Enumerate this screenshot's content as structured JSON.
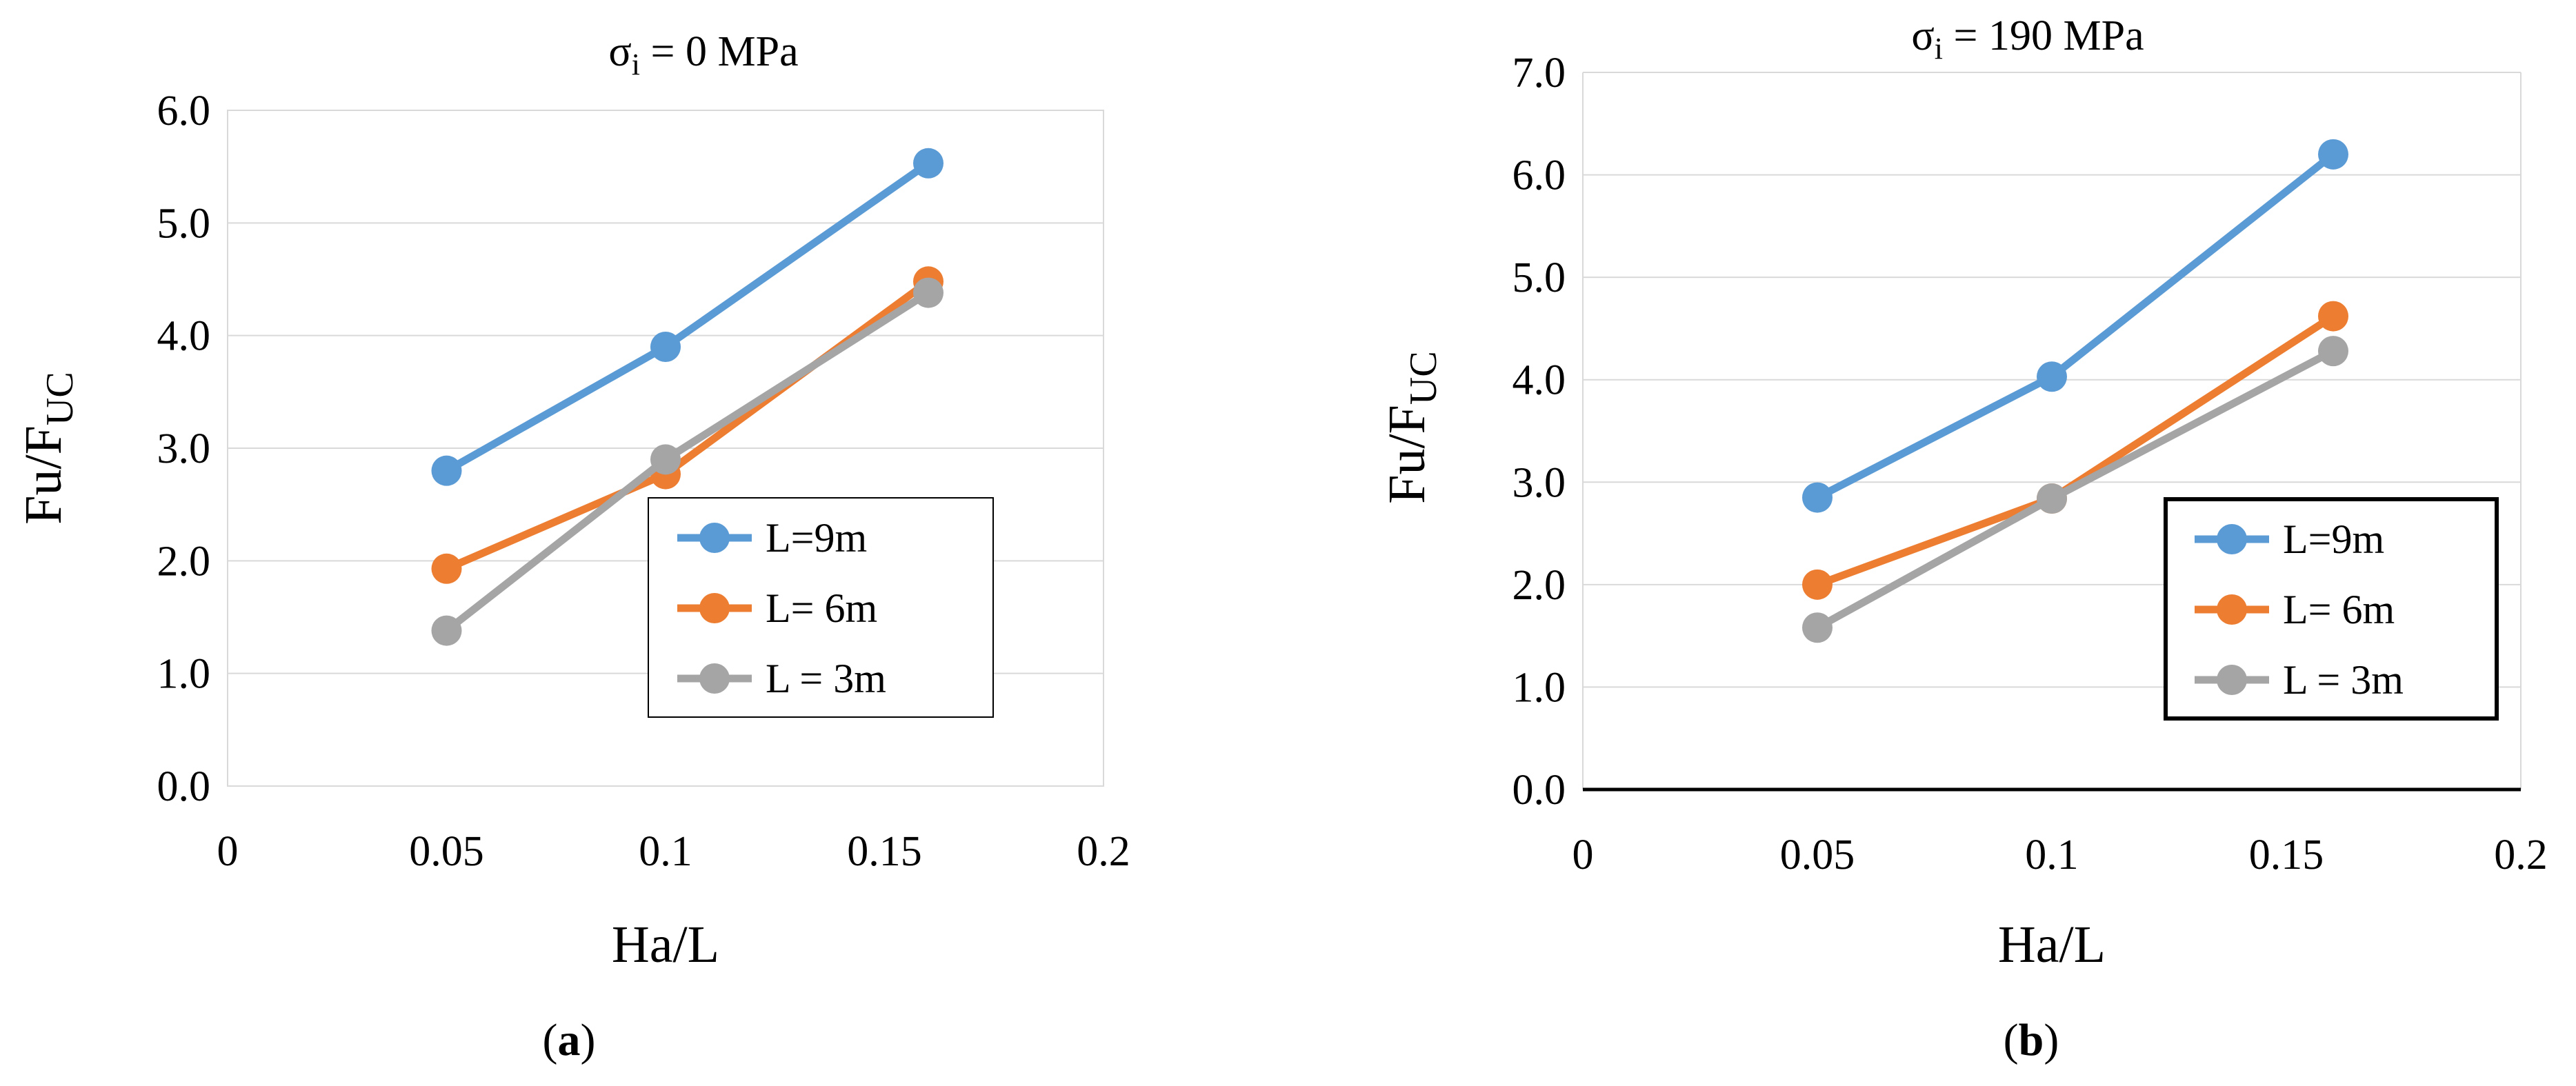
{
  "chart_data": [
    {
      "type": "line",
      "title": {
        "base": "σ",
        "sub": "i",
        "rest": " = 0 MPa"
      },
      "xlabel": "Ha/L",
      "ylabel": {
        "base": "Fu/F",
        "sub": "UC"
      },
      "xlim": [
        0,
        0.2
      ],
      "ylim": [
        0,
        6
      ],
      "xticks": [
        "0",
        "0.05",
        "0.1",
        "0.15",
        "0.2"
      ],
      "yticks": [
        "0.0",
        "1.0",
        "2.0",
        "3.0",
        "4.0",
        "5.0",
        "6.0"
      ],
      "x": [
        0.05,
        0.1,
        0.16
      ],
      "series": [
        {
          "name": "L=9m",
          "values": [
            2.8,
            3.9,
            5.53
          ],
          "color": "#5B9BD5"
        },
        {
          "name": "L= 6m",
          "values": [
            1.93,
            2.77,
            4.48
          ],
          "color": "#ED7D31"
        },
        {
          "name": "L = 3m",
          "values": [
            1.38,
            2.9,
            4.38
          ],
          "color": "#A5A5A5"
        }
      ],
      "legend_position": "lower-right",
      "panel_label": {
        "open": "(",
        "letter": "a",
        "close": ")"
      }
    },
    {
      "type": "line",
      "title": {
        "base": "σ",
        "sub": "i",
        "rest": " = 190 MPa"
      },
      "xlabel": "Ha/L",
      "ylabel": {
        "base": "Fu/F",
        "sub": "UC"
      },
      "xlim": [
        0,
        0.2
      ],
      "ylim": [
        0,
        7
      ],
      "xticks": [
        "0",
        "0.05",
        "0.1",
        "0.15",
        "0.2"
      ],
      "yticks": [
        "0.0",
        "1.0",
        "2.0",
        "3.0",
        "4.0",
        "5.0",
        "6.0",
        "7.0"
      ],
      "x": [
        0.05,
        0.1,
        0.16
      ],
      "series": [
        {
          "name": "L=9m",
          "values": [
            2.85,
            4.03,
            6.2
          ],
          "color": "#5B9BD5"
        },
        {
          "name": "L= 6m",
          "values": [
            2.0,
            2.84,
            4.62
          ],
          "color": "#ED7D31"
        },
        {
          "name": "L = 3m",
          "values": [
            1.58,
            2.84,
            4.28
          ],
          "color": "#A5A5A5"
        }
      ],
      "legend_position": "lower-right",
      "panel_label": {
        "open": "(",
        "letter": "b",
        "close": ")"
      }
    }
  ]
}
